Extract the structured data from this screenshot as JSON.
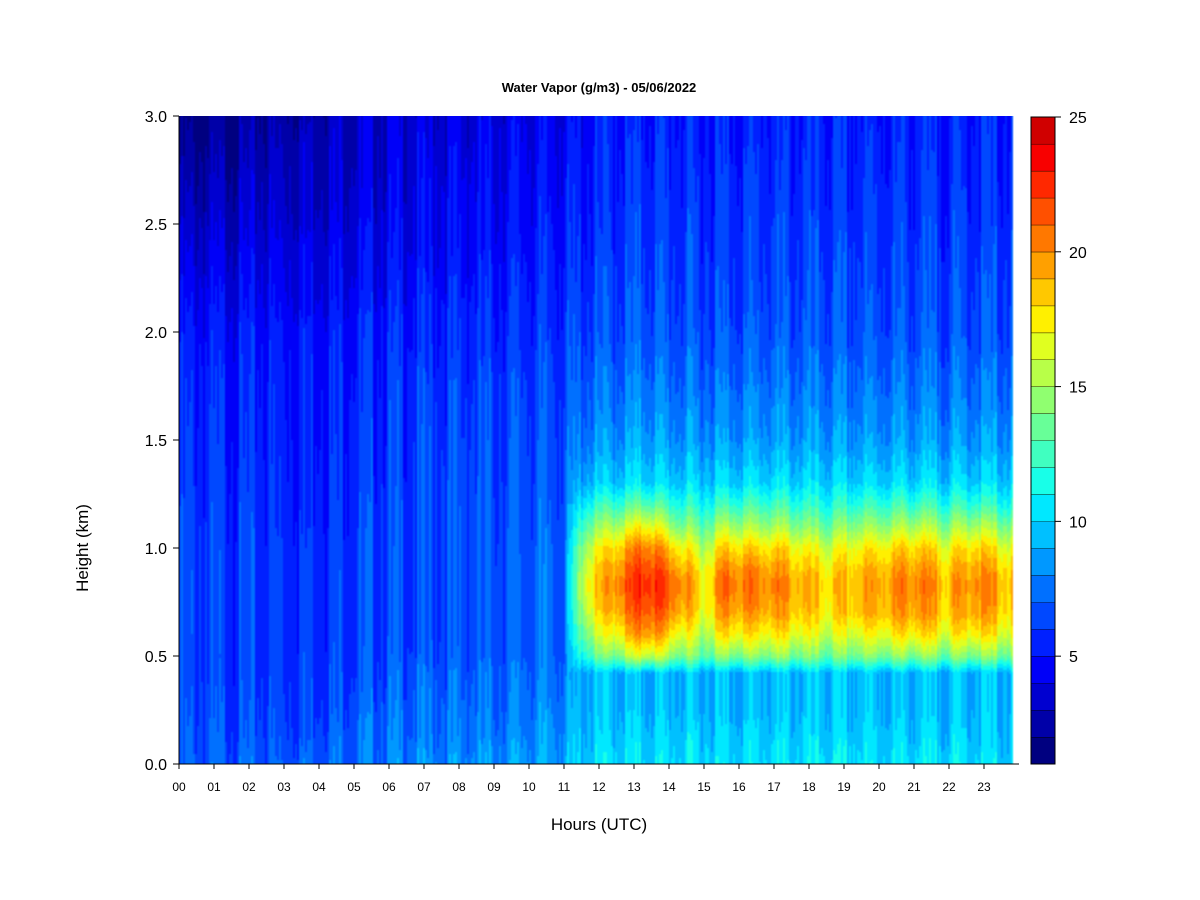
{
  "chart_data": {
    "type": "heatmap",
    "title": "Water Vapor (g/m3) - 05/06/2022",
    "xlabel": "Hours (UTC)",
    "ylabel": "Height (km)",
    "xlim": [
      0,
      24
    ],
    "ylim": [
      0,
      3
    ],
    "x_ticks": [
      "00",
      "01",
      "02",
      "03",
      "04",
      "05",
      "06",
      "07",
      "08",
      "09",
      "10",
      "11",
      "12",
      "13",
      "14",
      "15",
      "16",
      "17",
      "18",
      "19",
      "20",
      "21",
      "22",
      "23"
    ],
    "y_ticks": [
      "0.0",
      "0.5",
      "1.0",
      "1.5",
      "2.0",
      "2.5",
      "3.0"
    ],
    "colorbar": {
      "range": [
        1,
        25
      ],
      "step": 1,
      "ticks": [
        "5",
        "10",
        "15",
        "20",
        "25"
      ],
      "colors": [
        "#000080",
        "#0000a8",
        "#0000d0",
        "#0000f8",
        "#0020ff",
        "#0048ff",
        "#0070ff",
        "#0098ff",
        "#00c0ff",
        "#00e8ff",
        "#18ffe8",
        "#40ffc0",
        "#68ff98",
        "#90ff70",
        "#b8ff48",
        "#e0ff20",
        "#fff000",
        "#ffc800",
        "#ffa000",
        "#ff7800",
        "#ff5000",
        "#ff2800",
        "#f80000",
        "#d00000",
        "#a80000",
        "#800000"
      ]
    },
    "profiles": {
      "height_km": [
        0.0,
        0.25,
        0.42,
        0.5,
        0.6,
        0.7,
        0.8,
        0.85,
        0.9,
        1.0,
        1.1,
        1.2,
        1.3,
        1.5,
        1.75,
        2.0,
        2.5,
        3.0
      ],
      "times_h": [
        0,
        3,
        6,
        9,
        11,
        11.6,
        12.5,
        13.4,
        14.2,
        15,
        15.6,
        16.5,
        17.2,
        18.5,
        19.2,
        20.5,
        21,
        22,
        22.8,
        23.8
      ],
      "values_g_m3": [
        [
          7.5,
          7.0,
          6.8,
          6.8,
          6.9,
          6.9,
          6.9,
          6.9,
          6.9,
          6.8,
          6.7,
          6.6,
          6.4,
          6.2,
          6.0,
          5.5,
          3.6,
          1.8
        ],
        [
          7.5,
          7.0,
          6.6,
          6.5,
          6.5,
          6.5,
          6.5,
          6.5,
          6.5,
          6.5,
          6.4,
          6.3,
          6.3,
          6.2,
          6.0,
          5.6,
          4.3,
          3.2
        ],
        [
          8.5,
          7.8,
          7.5,
          7.2,
          7.0,
          7.0,
          7.0,
          7.0,
          6.9,
          6.9,
          6.8,
          6.8,
          6.7,
          6.6,
          6.5,
          6.0,
          4.8,
          4.2
        ],
        [
          9.0,
          8.0,
          7.8,
          7.5,
          7.5,
          7.5,
          7.5,
          7.5,
          7.5,
          7.4,
          7.3,
          7.2,
          7.1,
          7.0,
          6.8,
          6.3,
          5.3,
          4.6
        ],
        [
          9.5,
          8.8,
          8.3,
          8.0,
          8.0,
          7.9,
          7.9,
          7.9,
          7.9,
          7.8,
          7.7,
          7.6,
          7.5,
          7.3,
          7.0,
          6.6,
          5.8,
          5.0
        ],
        [
          10.5,
          10.0,
          10.0,
          13.0,
          15.0,
          16.5,
          17.5,
          17.5,
          17.0,
          16.0,
          14.0,
          12.0,
          10.0,
          8.5,
          7.8,
          7.0,
          6.0,
          5.5
        ],
        [
          11.0,
          10.0,
          10.0,
          15.0,
          18.0,
          20.0,
          21.0,
          21.0,
          20.5,
          19.0,
          16.0,
          13.0,
          10.5,
          9.0,
          8.0,
          7.2,
          6.5,
          5.8
        ],
        [
          11.0,
          10.0,
          10.0,
          17.0,
          21.0,
          22.5,
          23.5,
          23.5,
          23.0,
          21.5,
          18.0,
          14.0,
          11.0,
          9.5,
          8.5,
          7.5,
          6.8,
          6.0
        ],
        [
          11.0,
          10.0,
          10.0,
          15.0,
          18.0,
          20.5,
          21.5,
          21.5,
          20.5,
          18.5,
          15.0,
          12.5,
          10.5,
          9.0,
          8.0,
          7.2,
          6.5,
          6.0
        ],
        [
          11.0,
          10.0,
          10.0,
          14.0,
          16.0,
          17.5,
          18.0,
          18.0,
          17.5,
          16.0,
          14.0,
          12.0,
          10.5,
          9.0,
          8.0,
          7.2,
          6.5,
          5.8
        ],
        [
          11.0,
          10.0,
          10.0,
          15.0,
          18.5,
          20.5,
          21.5,
          21.5,
          21.0,
          19.0,
          16.0,
          13.0,
          10.8,
          9.2,
          8.2,
          7.3,
          6.6,
          6.0
        ],
        [
          11.0,
          10.0,
          10.0,
          15.0,
          18.0,
          20.0,
          21.0,
          21.0,
          20.5,
          18.5,
          15.5,
          13.0,
          10.8,
          9.2,
          8.2,
          7.3,
          6.6,
          6.0
        ],
        [
          11.0,
          10.0,
          10.0,
          15.0,
          18.0,
          20.0,
          20.5,
          20.5,
          20.0,
          18.5,
          15.5,
          13.0,
          10.8,
          9.2,
          8.2,
          7.3,
          6.6,
          6.0
        ],
        [
          11.0,
          10.0,
          10.0,
          14.0,
          16.5,
          18.0,
          18.5,
          18.5,
          18.0,
          16.5,
          14.0,
          12.0,
          10.5,
          9.0,
          8.0,
          7.2,
          6.5,
          5.8
        ],
        [
          11.0,
          10.0,
          10.0,
          14.5,
          17.0,
          19.0,
          19.5,
          19.5,
          19.0,
          17.5,
          15.0,
          12.5,
          10.6,
          9.0,
          8.0,
          7.2,
          6.5,
          5.8
        ],
        [
          11.0,
          10.0,
          10.0,
          15.0,
          18.0,
          20.0,
          20.5,
          20.5,
          20.0,
          18.5,
          15.5,
          13.0,
          10.8,
          9.2,
          8.2,
          7.3,
          6.6,
          6.0
        ],
        [
          11.0,
          10.0,
          10.0,
          15.0,
          18.5,
          20.5,
          21.0,
          21.0,
          20.5,
          19.0,
          16.0,
          13.0,
          10.8,
          9.2,
          8.2,
          7.3,
          6.6,
          6.0
        ],
        [
          11.0,
          10.0,
          10.0,
          14.5,
          17.5,
          19.0,
          19.5,
          19.5,
          19.0,
          17.5,
          15.0,
          12.5,
          10.6,
          9.0,
          8.0,
          7.2,
          6.5,
          5.8
        ],
        [
          11.0,
          10.0,
          10.0,
          15.0,
          18.5,
          20.5,
          21.0,
          21.0,
          20.5,
          19.0,
          16.0,
          13.0,
          10.8,
          9.2,
          8.2,
          7.3,
          6.6,
          6.0
        ],
        [
          10.5,
          10.0,
          10.0,
          14.5,
          17.0,
          18.5,
          19.0,
          19.0,
          18.5,
          17.0,
          14.5,
          12.0,
          10.5,
          9.0,
          8.0,
          7.2,
          6.5,
          5.8
        ]
      ]
    }
  }
}
